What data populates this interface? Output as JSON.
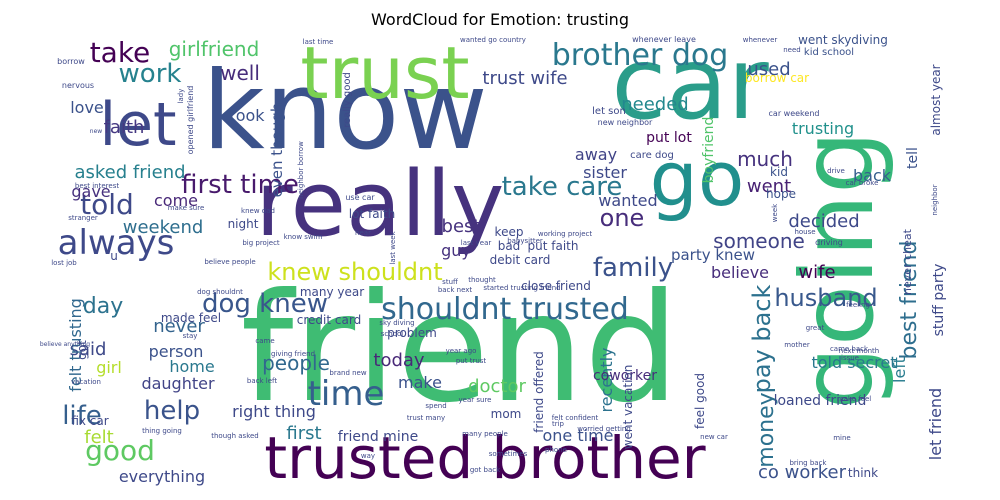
{
  "chart_data": {
    "type": "wordcloud",
    "title": "WordCloud for Emotion: trusting",
    "words": [
      {
        "text": "friend",
        "color": "#3fbc73"
      },
      {
        "text": "know",
        "color": "#3b528b"
      },
      {
        "text": "car",
        "color": "#2a9d8a"
      },
      {
        "text": "going",
        "color": "#35b779"
      },
      {
        "text": "really",
        "color": "#46327e"
      },
      {
        "text": "trust",
        "color": "#7ad151"
      },
      {
        "text": "go",
        "color": "#218f8d"
      },
      {
        "text": "trusted brother",
        "color": "#440154"
      },
      {
        "text": "let",
        "color": "#3e4989"
      },
      {
        "text": "brother dog",
        "color": "#2a788e"
      },
      {
        "text": "shouldnt trusted",
        "color": "#31688e"
      },
      {
        "text": "knew shouldnt",
        "color": "#cde11d"
      },
      {
        "text": "always",
        "color": "#3e4989"
      },
      {
        "text": "time",
        "color": "#355f8d"
      },
      {
        "text": "first time",
        "color": "#481a6c"
      },
      {
        "text": "take care",
        "color": "#2a788e"
      },
      {
        "text": "dog knew",
        "color": "#39568c"
      },
      {
        "text": "good",
        "color": "#5ec962"
      },
      {
        "text": "told",
        "color": "#3e4989"
      },
      {
        "text": "take",
        "color": "#440154"
      },
      {
        "text": "work",
        "color": "#26828e"
      },
      {
        "text": "girlfriend",
        "color": "#50c46a"
      },
      {
        "text": "well",
        "color": "#472d7b"
      },
      {
        "text": "family",
        "color": "#3b528b"
      },
      {
        "text": "husband",
        "color": "#38588c"
      },
      {
        "text": "pay back",
        "color": "#2c718e"
      },
      {
        "text": "best friend",
        "color": "#2e6e8e"
      },
      {
        "text": "life",
        "color": "#355f8d"
      },
      {
        "text": "help",
        "color": "#3a538b"
      },
      {
        "text": "someone",
        "color": "#414487"
      },
      {
        "text": "one",
        "color": "#472d7b"
      },
      {
        "text": "money",
        "color": "#2c718e"
      },
      {
        "text": "trust wife",
        "color": "#3e4989"
      },
      {
        "text": "needed",
        "color": "#23888e"
      },
      {
        "text": "used",
        "color": "#3b528b"
      },
      {
        "text": "faith",
        "color": "#453882"
      },
      {
        "text": "love",
        "color": "#3b528b"
      },
      {
        "text": "asked friend",
        "color": "#27808e"
      },
      {
        "text": "gave",
        "color": "#46307e"
      },
      {
        "text": "weekend",
        "color": "#2e6e8e"
      },
      {
        "text": "come",
        "color": "#482878"
      },
      {
        "text": "day",
        "color": "#2c728e"
      },
      {
        "text": "said",
        "color": "#3e4989"
      },
      {
        "text": "never",
        "color": "#33638d"
      },
      {
        "text": "even though",
        "color": "#3b528b"
      },
      {
        "text": "took",
        "color": "#3b528b"
      },
      {
        "text": "much",
        "color": "#46327e"
      },
      {
        "text": "went",
        "color": "#482173"
      },
      {
        "text": "trusting",
        "color": "#21918c"
      },
      {
        "text": "back",
        "color": "#355f8d"
      },
      {
        "text": "decided",
        "color": "#3e4989"
      },
      {
        "text": "believe",
        "color": "#472d7b"
      },
      {
        "text": "wife",
        "color": "#440154"
      },
      {
        "text": "party knew",
        "color": "#3b528b"
      },
      {
        "text": "best",
        "color": "#46327e"
      },
      {
        "text": "guy",
        "color": "#46327e"
      },
      {
        "text": "wanted",
        "color": "#3e4989"
      },
      {
        "text": "sister",
        "color": "#3e4989"
      },
      {
        "text": "away",
        "color": "#414487"
      },
      {
        "text": "people",
        "color": "#31688e"
      },
      {
        "text": "home",
        "color": "#2a788e"
      },
      {
        "text": "person",
        "color": "#3b528b"
      },
      {
        "text": "daughter",
        "color": "#414487"
      },
      {
        "text": "girl",
        "color": "#b5de2b"
      },
      {
        "text": "felt trusting",
        "color": "#31688e"
      },
      {
        "text": "felt",
        "color": "#a8db34"
      },
      {
        "text": "everything",
        "color": "#3e4989"
      },
      {
        "text": "right thing",
        "color": "#3e4989"
      },
      {
        "text": "first",
        "color": "#2a788e"
      },
      {
        "text": "make",
        "color": "#3b528b"
      },
      {
        "text": "doctor",
        "color": "#5ec962"
      },
      {
        "text": "today",
        "color": "#482878"
      },
      {
        "text": "friend mine",
        "color": "#3e4989"
      },
      {
        "text": "one time",
        "color": "#3b528b"
      },
      {
        "text": "co worker",
        "color": "#3b528b"
      },
      {
        "text": "told secret",
        "color": "#2a788e"
      },
      {
        "text": "let friend",
        "color": "#3e4989"
      },
      {
        "text": "left",
        "color": "#287c8e"
      },
      {
        "text": "recently",
        "color": "#2c728e"
      },
      {
        "text": "coworker",
        "color": "#472d7b"
      },
      {
        "text": "boyfriend",
        "color": "#50c46a"
      },
      {
        "text": "put lot",
        "color": "#440154"
      },
      {
        "text": "kid school",
        "color": "#3b528b"
      },
      {
        "text": "went skydiving",
        "color": "#3b528b"
      },
      {
        "text": "borrow car",
        "color": "#fde725"
      },
      {
        "text": "almost year",
        "color": "#3e4989"
      },
      {
        "text": "tell",
        "color": "#3b528b"
      },
      {
        "text": "kid",
        "color": "#3b528b"
      },
      {
        "text": "hope",
        "color": "#3b528b"
      },
      {
        "text": "loaned friend",
        "color": "#3e4989"
      },
      {
        "text": "stuff party",
        "color": "#3e4989"
      },
      {
        "text": "debit card",
        "color": "#3e4989"
      },
      {
        "text": "close friend",
        "color": "#3e4989"
      },
      {
        "text": "credit card",
        "color": "#3e4989"
      },
      {
        "text": "made feel",
        "color": "#3e4989"
      },
      {
        "text": "problem",
        "color": "#3e4989"
      },
      {
        "text": "lot faith",
        "color": "#3e4989"
      },
      {
        "text": "keep",
        "color": "#3e4989"
      },
      {
        "text": "bad",
        "color": "#3e4989"
      },
      {
        "text": "put faith",
        "color": "#3e4989"
      },
      {
        "text": "night",
        "color": "#3e4989"
      },
      {
        "text": "many year",
        "color": "#3e4989"
      },
      {
        "text": "friend offered",
        "color": "#3e4989"
      },
      {
        "text": "went vacation",
        "color": "#3e4989"
      },
      {
        "text": "feel good",
        "color": "#3e4989"
      },
      {
        "text": "mom",
        "color": "#3e4989"
      },
      {
        "text": "fix car",
        "color": "#3e4989"
      },
      {
        "text": "think",
        "color": "#3e4989"
      },
      {
        "text": "never cheat",
        "color": "#3e4989"
      },
      {
        "text": "really good",
        "color": "#3e4989"
      },
      {
        "text": "let son",
        "color": "#3e4989"
      },
      {
        "text": "care dog",
        "color": "#3e4989"
      },
      {
        "text": "car weekend",
        "color": "#3e4989"
      },
      {
        "text": "new neighbor",
        "color": "#3e4989"
      },
      {
        "text": "borrow",
        "color": "#3e4989"
      },
      {
        "text": "nervous",
        "color": "#3e4989"
      },
      {
        "text": "opened girlfriend",
        "color": "#3e4989"
      },
      {
        "text": "neighbor borrow",
        "color": "#3e4989"
      },
      {
        "text": "lady",
        "color": "#3e4989"
      },
      {
        "text": "new",
        "color": "#3e4989"
      },
      {
        "text": "last time",
        "color": "#3e4989"
      },
      {
        "text": "wanted go country",
        "color": "#3e4989"
      },
      {
        "text": "whenever leave",
        "color": "#3e4989"
      },
      {
        "text": "whenever",
        "color": "#3e4989"
      },
      {
        "text": "need",
        "color": "#3e4989"
      },
      {
        "text": "best interest",
        "color": "#3e4989"
      },
      {
        "text": "lost job",
        "color": "#3e4989"
      },
      {
        "text": "stranger",
        "color": "#3e4989"
      },
      {
        "text": "make sure",
        "color": "#3e4989"
      },
      {
        "text": "knew dad",
        "color": "#3e4989"
      },
      {
        "text": "use car",
        "color": "#3e4989"
      },
      {
        "text": "big project",
        "color": "#3e4989"
      },
      {
        "text": "believe people",
        "color": "#3e4989"
      },
      {
        "text": "know swim",
        "color": "#3e4989"
      },
      {
        "text": "hear",
        "color": "#3e4989"
      },
      {
        "text": "last week",
        "color": "#3e4989"
      },
      {
        "text": "last year",
        "color": "#3e4989"
      },
      {
        "text": "babysitter",
        "color": "#3e4989"
      },
      {
        "text": "working project",
        "color": "#3e4989"
      },
      {
        "text": "house",
        "color": "#3e4989"
      },
      {
        "text": "week",
        "color": "#3e4989"
      },
      {
        "text": "driving",
        "color": "#3e4989"
      },
      {
        "text": "drive",
        "color": "#3e4989"
      },
      {
        "text": "car broke",
        "color": "#3e4989"
      },
      {
        "text": "neighbor",
        "color": "#3e4989"
      },
      {
        "text": "stuff",
        "color": "#3e4989"
      },
      {
        "text": "thought",
        "color": "#3e4989"
      },
      {
        "text": "back next",
        "color": "#3e4989"
      },
      {
        "text": "started trusting friend",
        "color": "#3e4989"
      },
      {
        "text": "dog shouldnt",
        "color": "#3e4989"
      },
      {
        "text": "sky diving",
        "color": "#3e4989"
      },
      {
        "text": "school",
        "color": "#3e4989"
      },
      {
        "text": "giving friend",
        "color": "#3e4989"
      },
      {
        "text": "year ago",
        "color": "#3e4989"
      },
      {
        "text": "put trust",
        "color": "#3e4989"
      },
      {
        "text": "feeling",
        "color": "#3e4989"
      },
      {
        "text": "great",
        "color": "#3e4989"
      },
      {
        "text": "next month",
        "color": "#3e4989"
      },
      {
        "text": "came back",
        "color": "#3e4989"
      },
      {
        "text": "issue",
        "color": "#3e4989"
      },
      {
        "text": "vacation",
        "color": "#3e4989"
      },
      {
        "text": "believe anything",
        "color": "#3e4989"
      },
      {
        "text": "back left",
        "color": "#3e4989"
      },
      {
        "text": "brand new",
        "color": "#3e4989"
      },
      {
        "text": "spend",
        "color": "#3e4989"
      },
      {
        "text": "year sure",
        "color": "#3e4989"
      },
      {
        "text": "trust many",
        "color": "#3e4989"
      },
      {
        "text": "felt confident",
        "color": "#3e4989"
      },
      {
        "text": "worried getting",
        "color": "#3e4989"
      },
      {
        "text": "phone",
        "color": "#3e4989"
      },
      {
        "text": "new car",
        "color": "#3e4989"
      },
      {
        "text": "bring back",
        "color": "#3e4989"
      },
      {
        "text": "mine",
        "color": "#3e4989"
      },
      {
        "text": "make feel",
        "color": "#3e4989"
      },
      {
        "text": "mother",
        "color": "#3e4989"
      },
      {
        "text": "thing going",
        "color": "#3e4989"
      },
      {
        "text": "though asked",
        "color": "#3e4989"
      },
      {
        "text": "way",
        "color": "#3e4989"
      },
      {
        "text": "many people",
        "color": "#3e4989"
      },
      {
        "text": "sometimes",
        "color": "#3e4989"
      },
      {
        "text": "got back",
        "color": "#3e4989"
      },
      {
        "text": "came",
        "color": "#3e4989"
      },
      {
        "text": "stay",
        "color": "#3e4989"
      },
      {
        "text": "trip",
        "color": "#3e4989"
      },
      {
        "text": "got",
        "color": "#3e4989"
      },
      {
        "text": "u",
        "color": "#3e4989"
      }
    ]
  }
}
